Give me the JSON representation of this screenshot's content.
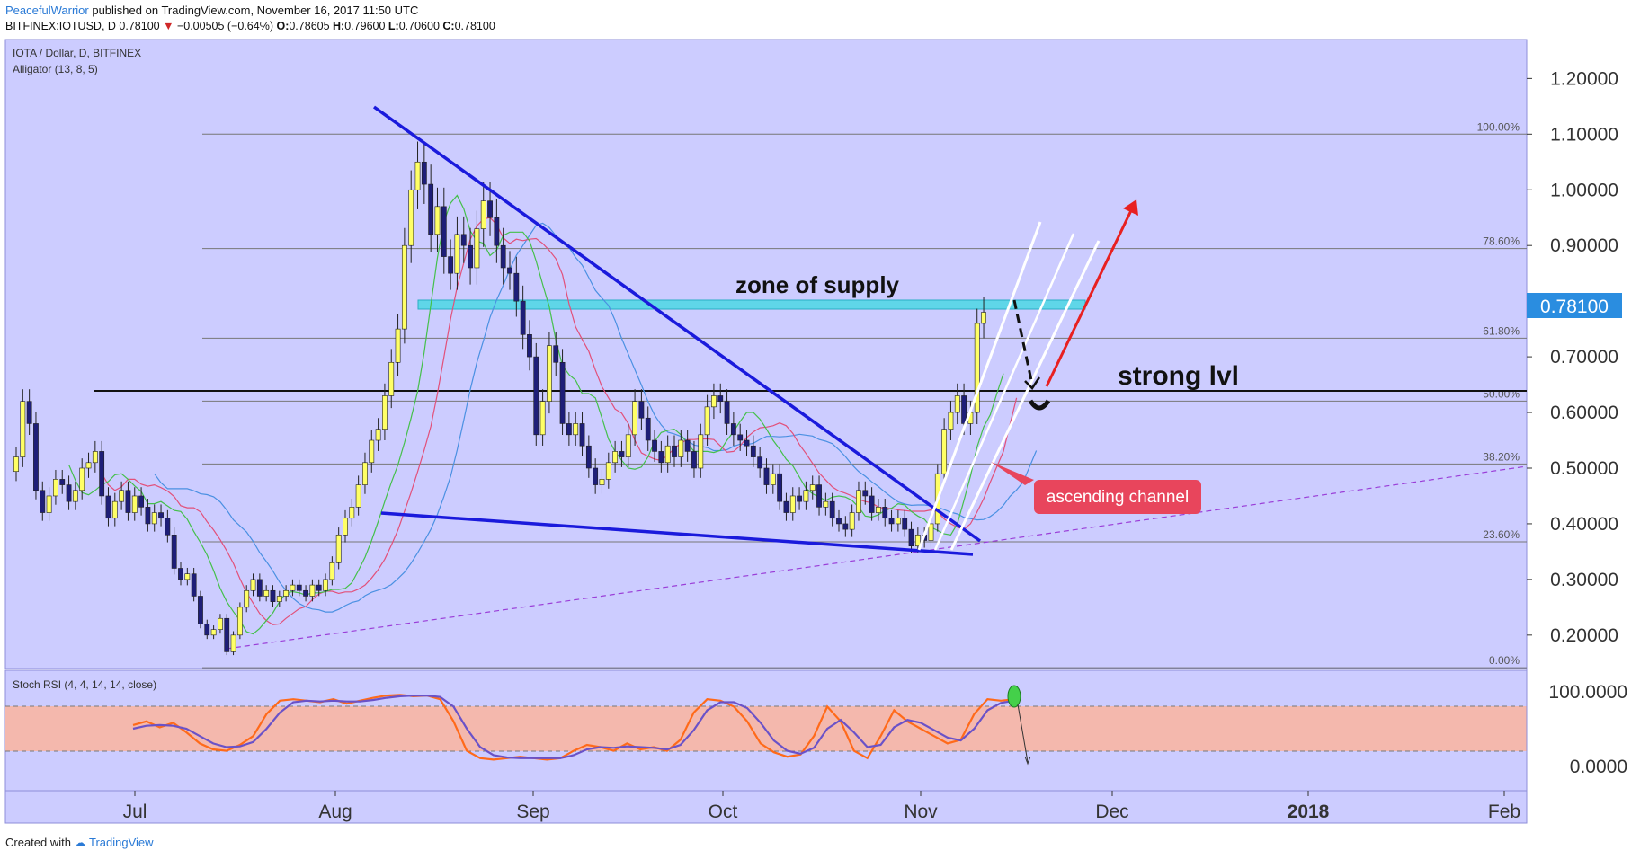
{
  "header": {
    "author": "PeacefulWarrior",
    "published": "published on TradingView.com, November 16, 2017 11:50 UTC",
    "symbol": "BITFINEX:IOTUSD, D",
    "last": "0.78100",
    "arrow": "▼",
    "change": "−0.00505 (−0.64%)",
    "o_label": "O:",
    "o": "0.78605",
    "h_label": "H:",
    "h": "0.79600",
    "l_label": "L:",
    "l": "0.70600",
    "c_label": "C:",
    "c": "0.78100"
  },
  "footer": {
    "created_with": "Created with",
    "brand": "TradingView",
    "logo_icon": "cloud-logo-icon"
  },
  "main_pane": {
    "title": "IOTA / Dollar, D, BITFINEX",
    "indicator": "Alligator (13, 8, 5)",
    "price_badge": "0.78100",
    "background": "#ccccff"
  },
  "stoch_pane": {
    "title": "Stoch RSI (4, 4, 14, 14, close)",
    "ticks": [
      "100.0000",
      "0.0000"
    ]
  },
  "annotations": {
    "supply": "zone of supply",
    "strong": "strong lvl",
    "channel": "ascending channel"
  },
  "colors": {
    "bull": "#ffff66",
    "bear": "#1e1e78",
    "jaw": "#4a90e2",
    "teeth": "#e2507a",
    "lips": "#44c04a",
    "trend": "#1a1adc",
    "supply": "#5fd6e8",
    "badge": "#2a8de0",
    "callout": "#e8455c",
    "stoch_k": "#ff6a1a",
    "stoch_d": "#6a52c8",
    "stoch_band": "#f4b8ad"
  },
  "chart_data": {
    "type": "candlestick",
    "y_axis": {
      "min": 0.14,
      "max": 1.27,
      "ticks": [
        "1.20000",
        "1.10000",
        "1.00000",
        "0.90000",
        "0.70000",
        "0.60000",
        "0.50000",
        "0.40000",
        "0.30000",
        "0.20000"
      ]
    },
    "x_axis": {
      "start": "2017-06-10",
      "ticks": [
        "Jul",
        "Aug",
        "Sep",
        "Oct",
        "Nov",
        "Dec",
        "2018",
        "Feb"
      ]
    },
    "fibonacci": [
      {
        "label": "100.00%",
        "price": 1.1
      },
      {
        "label": "78.60%",
        "price": 0.8945
      },
      {
        "label": "61.80%",
        "price": 0.7335
      },
      {
        "label": "50.00%",
        "price": 0.6205
      },
      {
        "label": "38.20%",
        "price": 0.5075
      },
      {
        "label": "23.60%",
        "price": 0.3676
      },
      {
        "label": "0.00%",
        "price": 0.1415
      }
    ],
    "strong_level": 0.622,
    "supply_zone": [
      0.771,
      0.787
    ],
    "closes": [
      0.52,
      0.62,
      0.58,
      0.46,
      0.42,
      0.45,
      0.48,
      0.47,
      0.44,
      0.46,
      0.5,
      0.51,
      0.53,
      0.45,
      0.41,
      0.44,
      0.46,
      0.42,
      0.45,
      0.43,
      0.4,
      0.42,
      0.41,
      0.38,
      0.32,
      0.3,
      0.31,
      0.27,
      0.22,
      0.2,
      0.21,
      0.23,
      0.17,
      0.2,
      0.25,
      0.28,
      0.3,
      0.27,
      0.28,
      0.26,
      0.27,
      0.28,
      0.29,
      0.28,
      0.27,
      0.29,
      0.28,
      0.3,
      0.33,
      0.38,
      0.41,
      0.43,
      0.47,
      0.51,
      0.55,
      0.57,
      0.63,
      0.69,
      0.75,
      0.9,
      1.0,
      1.05,
      1.01,
      0.92,
      0.97,
      0.88,
      0.85,
      0.92,
      0.9,
      0.86,
      0.93,
      0.98,
      0.95,
      0.9,
      0.86,
      0.85,
      0.8,
      0.74,
      0.7,
      0.56,
      0.62,
      0.72,
      0.69,
      0.58,
      0.56,
      0.58,
      0.54,
      0.5,
      0.47,
      0.48,
      0.51,
      0.53,
      0.52,
      0.56,
      0.62,
      0.59,
      0.55,
      0.53,
      0.51,
      0.54,
      0.52,
      0.55,
      0.53,
      0.5,
      0.56,
      0.61,
      0.63,
      0.62,
      0.58,
      0.56,
      0.55,
      0.54,
      0.52,
      0.5,
      0.47,
      0.49,
      0.44,
      0.42,
      0.45,
      0.44,
      0.46,
      0.47,
      0.43,
      0.44,
      0.41,
      0.4,
      0.39,
      0.42,
      0.46,
      0.45,
      0.42,
      0.43,
      0.41,
      0.4,
      0.41,
      0.39,
      0.36,
      0.38,
      0.37,
      0.4,
      0.49,
      0.57,
      0.6,
      0.63,
      0.58,
      0.6,
      0.76,
      0.78
    ],
    "stoch_k": [
      55,
      60,
      52,
      58,
      45,
      30,
      22,
      20,
      28,
      40,
      70,
      88,
      90,
      88,
      86,
      90,
      84,
      88,
      92,
      95,
      96,
      94,
      95,
      90,
      60,
      20,
      10,
      8,
      10,
      12,
      10,
      8,
      10,
      20,
      28,
      25,
      20,
      30,
      22,
      25,
      20,
      35,
      72,
      90,
      88,
      80,
      60,
      30,
      18,
      12,
      15,
      40,
      80,
      60,
      20,
      10,
      40,
      75,
      60,
      50,
      40,
      30,
      35,
      70,
      90,
      88,
      90
    ],
    "stoch_d": [
      50,
      54,
      55,
      54,
      50,
      40,
      30,
      25,
      26,
      32,
      50,
      72,
      86,
      88,
      87,
      88,
      87,
      87,
      89,
      92,
      94,
      95,
      95,
      93,
      80,
      50,
      25,
      14,
      11,
      10,
      10,
      10,
      10,
      14,
      22,
      25,
      24,
      26,
      25,
      24,
      22,
      28,
      48,
      75,
      86,
      86,
      78,
      58,
      34,
      20,
      16,
      24,
      50,
      62,
      45,
      25,
      28,
      52,
      62,
      58,
      48,
      38,
      34,
      50,
      75,
      85,
      88
    ]
  }
}
